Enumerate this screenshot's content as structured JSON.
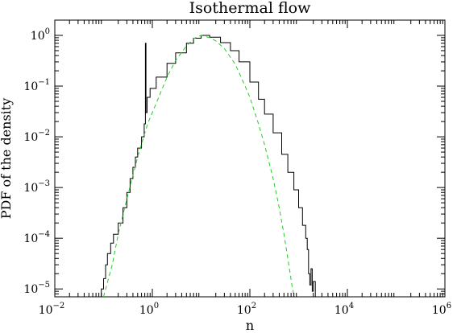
{
  "chart_data": {
    "type": "line",
    "title": "Isothermal flow",
    "xlabel": "n",
    "ylabel": "PDF of the density",
    "x_scale": "log",
    "y_scale": "log",
    "xlim": [
      0.01,
      1000000
    ],
    "ylim": [
      7e-06,
      2
    ],
    "x_ticks": [
      {
        "value": 0.01,
        "base": "10",
        "exp": "−2"
      },
      {
        "value": 1,
        "base": "10",
        "exp": "0"
      },
      {
        "value": 100,
        "base": "10",
        "exp": "2"
      },
      {
        "value": 10000,
        "base": "10",
        "exp": "4"
      },
      {
        "value": 1000000,
        "base": "10",
        "exp": "6"
      }
    ],
    "y_ticks": [
      {
        "value": 1e-05,
        "base": "10",
        "exp": "−5"
      },
      {
        "value": 0.0001,
        "base": "10",
        "exp": "−4"
      },
      {
        "value": 0.001,
        "base": "10",
        "exp": "−3"
      },
      {
        "value": 0.01,
        "base": "10",
        "exp": "−2"
      },
      {
        "value": 0.1,
        "base": "10",
        "exp": "−1"
      },
      {
        "value": 1,
        "base": "10",
        "exp": "0"
      }
    ],
    "grid": false,
    "legend": "none",
    "series": [
      {
        "style": "histogram",
        "color": "#000000",
        "points": [
          [
            0.06,
            7e-06
          ],
          [
            0.08,
            7e-06
          ],
          [
            0.09,
            1e-05
          ],
          [
            0.1,
            1.6e-05
          ],
          [
            0.11,
            3e-05
          ],
          [
            0.12,
            5e-05
          ],
          [
            0.14,
            8e-05
          ],
          [
            0.16,
            0.00012
          ],
          [
            0.2,
            0.0002
          ],
          [
            0.25,
            0.0004
          ],
          [
            0.3,
            0.0008
          ],
          [
            0.35,
            0.0015
          ],
          [
            0.4,
            0.0025
          ],
          [
            0.45,
            0.004
          ],
          [
            0.5,
            0.006
          ],
          [
            0.6,
            0.01
          ],
          [
            0.68,
            0.018
          ],
          [
            0.72,
            0.7
          ],
          [
            0.74,
            0.03
          ],
          [
            0.78,
            0.06
          ],
          [
            0.9,
            0.09
          ],
          [
            1.2,
            0.15
          ],
          [
            2,
            0.28
          ],
          [
            3,
            0.45
          ],
          [
            5,
            0.7
          ],
          [
            7,
            0.88
          ],
          [
            10,
            1.0
          ],
          [
            15,
            0.92
          ],
          [
            25,
            0.72
          ],
          [
            40,
            0.5
          ],
          [
            60,
            0.3
          ],
          [
            100,
            0.12
          ],
          [
            150,
            0.055
          ],
          [
            200,
            0.028
          ],
          [
            300,
            0.012
          ],
          [
            450,
            0.0045
          ],
          [
            600,
            0.002
          ],
          [
            800,
            0.0009
          ],
          [
            1000,
            0.0004
          ],
          [
            1200,
            0.00018
          ],
          [
            1400,
            0.0001
          ],
          [
            1500,
            6e-05
          ],
          [
            1600,
            2e-05
          ],
          [
            1700,
            1.2e-05
          ],
          [
            1800,
            2.5e-05
          ],
          [
            1900,
            9e-06
          ],
          [
            2000,
            1.4e-05
          ],
          [
            2200,
            7e-06
          ],
          [
            5000,
            7e-06
          ],
          [
            800000,
            7e-06
          ]
        ]
      },
      {
        "style": "dashed",
        "color": "#22cc22",
        "points": [
          [
            0.1,
            7e-06
          ],
          [
            0.15,
            3e-05
          ],
          [
            0.2,
            0.00012
          ],
          [
            0.3,
            0.0006
          ],
          [
            0.5,
            0.004
          ],
          [
            0.8,
            0.018
          ],
          [
            1,
            0.03
          ],
          [
            2,
            0.15
          ],
          [
            3,
            0.32
          ],
          [
            5,
            0.62
          ],
          [
            7,
            0.86
          ],
          [
            10,
            1.0
          ],
          [
            15,
            0.9
          ],
          [
            20,
            0.78
          ],
          [
            30,
            0.55
          ],
          [
            50,
            0.27
          ],
          [
            80,
            0.1
          ],
          [
            100,
            0.06
          ],
          [
            150,
            0.018
          ],
          [
            200,
            0.007
          ],
          [
            300,
            0.0015
          ],
          [
            400,
            0.0004
          ],
          [
            500,
            0.00012
          ],
          [
            600,
            4e-05
          ],
          [
            750,
            1e-05
          ],
          [
            820,
            7e-06
          ]
        ]
      }
    ]
  }
}
